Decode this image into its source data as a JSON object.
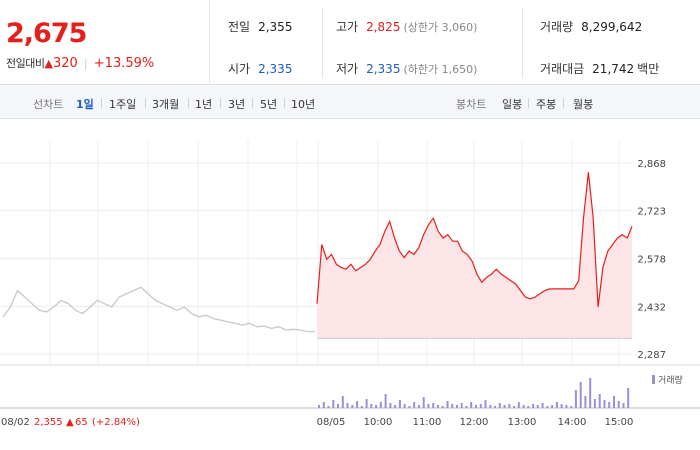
{
  "header": {
    "price": "2,675",
    "change_label": "전일대비",
    "change_arrow": "▲",
    "change_value": "320",
    "change_sep": "|",
    "change_rate": "+13.59%"
  },
  "stats": {
    "prev_close": {
      "label": "전일",
      "value": "2,355"
    },
    "open": {
      "label": "시가",
      "value": "2,335"
    },
    "high": {
      "label": "고가",
      "value": "2,825",
      "limit": "(상한가 3,060)"
    },
    "low": {
      "label": "저가",
      "value": "2,335",
      "limit": "(하한가 1,650)"
    },
    "volume": {
      "label": "거래량",
      "value": "8,299,642"
    },
    "amount": {
      "label": "거래대금",
      "value": "21,742",
      "unit": "백만"
    }
  },
  "line_periods": {
    "title": "선차트",
    "items": [
      "1일",
      "1주일",
      "3개월",
      "1년",
      "3년",
      "5년",
      "10년"
    ],
    "active": "1일"
  },
  "candle_periods": {
    "title": "봉차트",
    "items": [
      "일봉",
      "주봉",
      "월봉"
    ]
  },
  "chart": {
    "y_ticks": [
      "2,868",
      "2,723",
      "2,578",
      "2,432",
      "2,287"
    ],
    "x_ticks": [
      "08/02",
      "08/05",
      "10:00",
      "11:00",
      "12:00",
      "13:00",
      "14:00",
      "15:00"
    ],
    "volume_legend": "거래량",
    "prev_day_label": "2,355",
    "prev_day_change_arrow": "▲",
    "prev_day_change": "65",
    "prev_day_rate": "(+2.84%)",
    "colors": {
      "up": "#e5201c",
      "down": "#1a5cc9",
      "area": "#fde5e7",
      "prev_line": "#c8c8c8",
      "volume": "#9d8ed6"
    }
  },
  "chart_data": {
    "type": "line",
    "y_range": [
      2287,
      2868
    ],
    "previous_day": {
      "date": "08/02",
      "series": [
        2400,
        2430,
        2480,
        2460,
        2440,
        2420,
        2415,
        2430,
        2450,
        2440,
        2420,
        2410,
        2430,
        2450,
        2440,
        2430,
        2460,
        2470,
        2480,
        2490,
        2470,
        2450,
        2440,
        2430,
        2420,
        2430,
        2410,
        2400,
        2405,
        2395,
        2390,
        2385,
        2380,
        2375,
        2380,
        2370,
        2372,
        2365,
        2370,
        2360,
        2362,
        2360,
        2355,
        2355
      ]
    },
    "current_day": {
      "date": "08/05",
      "series": [
        2440,
        2620,
        2575,
        2590,
        2560,
        2550,
        2545,
        2560,
        2540,
        2550,
        2560,
        2575,
        2600,
        2620,
        2660,
        2690,
        2640,
        2600,
        2580,
        2600,
        2590,
        2610,
        2650,
        2680,
        2700,
        2660,
        2640,
        2650,
        2630,
        2630,
        2600,
        2590,
        2570,
        2530,
        2505,
        2520,
        2530,
        2545,
        2530,
        2520,
        2510,
        2500,
        2480,
        2460,
        2455,
        2460,
        2470,
        2480,
        2485,
        2485,
        2485,
        2485,
        2485,
        2485,
        2510,
        2700,
        2840,
        2700,
        2430,
        2550,
        2600,
        2620,
        2640,
        2650,
        2640,
        2675
      ]
    }
  }
}
